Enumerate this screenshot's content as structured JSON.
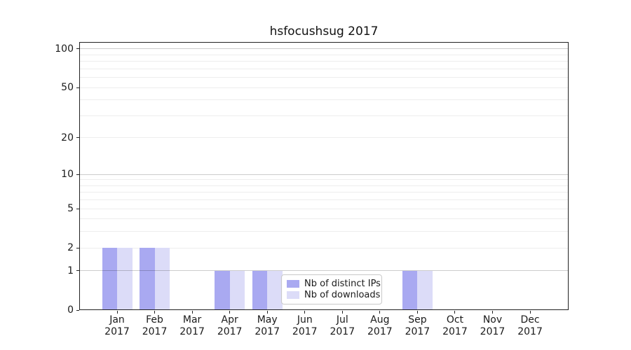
{
  "title": "hsfocushsug 2017",
  "chart_data": {
    "type": "bar",
    "title": "hsfocushsug 2017",
    "categories": [
      "Jan 2017",
      "Feb 2017",
      "Mar 2017",
      "Apr 2017",
      "May 2017",
      "Jun 2017",
      "Jul 2017",
      "Aug 2017",
      "Sep 2017",
      "Oct 2017",
      "Nov 2017",
      "Dec 2017"
    ],
    "series": [
      {
        "name": "Nb of distinct IPs",
        "color": "#a9a9f1",
        "values": [
          2,
          2,
          0,
          1,
          1,
          0,
          0,
          0,
          1,
          0,
          0,
          0
        ]
      },
      {
        "name": "Nb of downloads",
        "color": "#dcdcf8",
        "values": [
          2,
          2,
          0,
          1,
          1,
          0,
          0,
          0,
          1,
          0,
          0,
          0
        ]
      }
    ],
    "yscale": "log1p",
    "ylim": [
      0,
      113
    ],
    "yticks": [
      0,
      1,
      2,
      5,
      10,
      20,
      50,
      100
    ],
    "ytick_labels": [
      "0",
      "1",
      "2",
      "5",
      "10",
      "20",
      "50",
      "100"
    ],
    "gridlines_minor": [
      2,
      3,
      4,
      5,
      6,
      7,
      8,
      9,
      20,
      30,
      40,
      50,
      60,
      70,
      80,
      90
    ],
    "gridlines_major": [
      1,
      10,
      100
    ],
    "grid": true,
    "legend_position": "lower center",
    "xlabel": "",
    "ylabel": ""
  },
  "colors": {
    "background": "#ffffff",
    "bar_distinct_ips": "#a9a9f1",
    "bar_downloads": "#dcdcf8",
    "grid_minor": "#ededed",
    "grid_major_rgba": "rgba(0,0,0,0.20)",
    "axis": "#222222",
    "legend_border": "#c9c9c9"
  }
}
